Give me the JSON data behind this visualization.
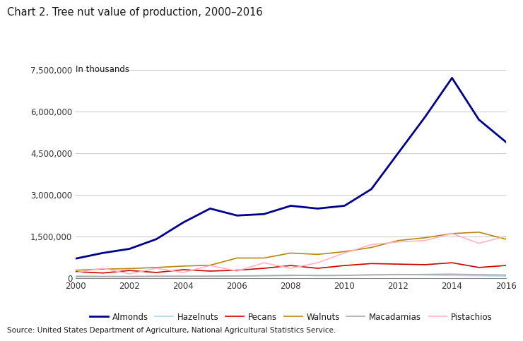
{
  "title": "Chart 2. Tree nut value of production, 2000–2016",
  "subtitle": "In thousands",
  "source": "Source: United States Department of Agriculture, National Agricultural Statistics Service.",
  "years": [
    2000,
    2001,
    2002,
    2003,
    2004,
    2005,
    2006,
    2007,
    2008,
    2009,
    2010,
    2011,
    2012,
    2013,
    2014,
    2015,
    2016
  ],
  "series": {
    "Almonds": {
      "color": "#00008B",
      "values": [
        700000,
        900000,
        1050000,
        1400000,
        2000000,
        2500000,
        2250000,
        2300000,
        2600000,
        2500000,
        2600000,
        3200000,
        4500000,
        5800000,
        7200000,
        5700000,
        4900000
      ]
    },
    "Hazelnuts": {
      "color": "#ADD8E6",
      "values": [
        80000,
        60000,
        50000,
        70000,
        60000,
        55000,
        65000,
        90000,
        110000,
        80000,
        90000,
        120000,
        130000,
        110000,
        90000,
        80000,
        70000
      ]
    },
    "Pecans": {
      "color": "#CC0000",
      "values": [
        230000,
        180000,
        270000,
        200000,
        300000,
        250000,
        280000,
        350000,
        450000,
        350000,
        450000,
        520000,
        500000,
        480000,
        550000,
        380000,
        450000
      ]
    },
    "Walnuts": {
      "color": "#B8860B",
      "values": [
        280000,
        320000,
        340000,
        380000,
        430000,
        460000,
        720000,
        720000,
        900000,
        850000,
        950000,
        1100000,
        1350000,
        1450000,
        1600000,
        1650000,
        1400000
      ]
    },
    "Macadamias": {
      "color": "#A9A9A9",
      "values": [
        50000,
        55000,
        58000,
        62000,
        65000,
        70000,
        75000,
        80000,
        90000,
        95000,
        100000,
        110000,
        120000,
        130000,
        140000,
        120000,
        110000
      ]
    },
    "Pistachios": {
      "color": "#FFB6C1",
      "values": [
        200000,
        350000,
        150000,
        350000,
        200000,
        450000,
        250000,
        550000,
        350000,
        550000,
        900000,
        1200000,
        1300000,
        1350000,
        1600000,
        1250000,
        1500000
      ]
    }
  },
  "ylim": [
    0,
    7500000
  ],
  "yticks": [
    0,
    1500000,
    3000000,
    4500000,
    6000000,
    7500000
  ],
  "xticks": [
    2000,
    2002,
    2004,
    2006,
    2008,
    2010,
    2012,
    2014,
    2016
  ],
  "background_color": "#ffffff",
  "grid_color": "#cccccc",
  "title_fontsize": 10.5,
  "subtitle_fontsize": 8.5,
  "tick_fontsize": 8.5,
  "legend_fontsize": 8.5,
  "source_fontsize": 7.5
}
